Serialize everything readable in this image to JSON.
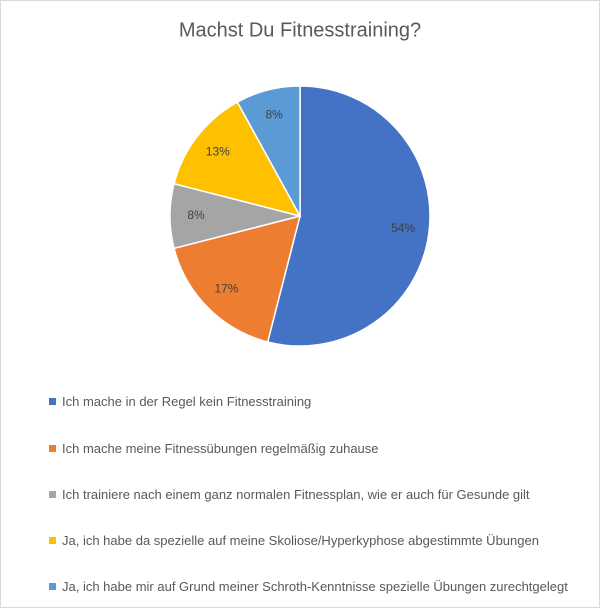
{
  "chart_data": {
    "type": "pie",
    "title": "Machst Du Fitnesstraining?",
    "categories": [
      "Ich mache in der Regel kein Fitnesstraining",
      "Ich mache meine Fitnessübungen regelmäßig zuhause",
      "Ich trainiere nach einem ganz normalen Fitnessplan, wie er auch für Gesunde gilt",
      "Ja, ich habe da spezielle auf meine Skoliose/Hyperkyphose abgestimmte Übungen",
      "Ja, ich habe mir auf Grund meiner Schroth-Kenntnisse spezielle Übungen zurechtgelegt"
    ],
    "values": [
      54,
      17,
      8,
      13,
      8
    ],
    "value_labels": [
      "54%",
      "17%",
      "8%",
      "13%",
      "8%"
    ],
    "colors": [
      "#4472c4",
      "#ed7d31",
      "#a5a5a5",
      "#ffc000",
      "#5b9bd5"
    ]
  }
}
